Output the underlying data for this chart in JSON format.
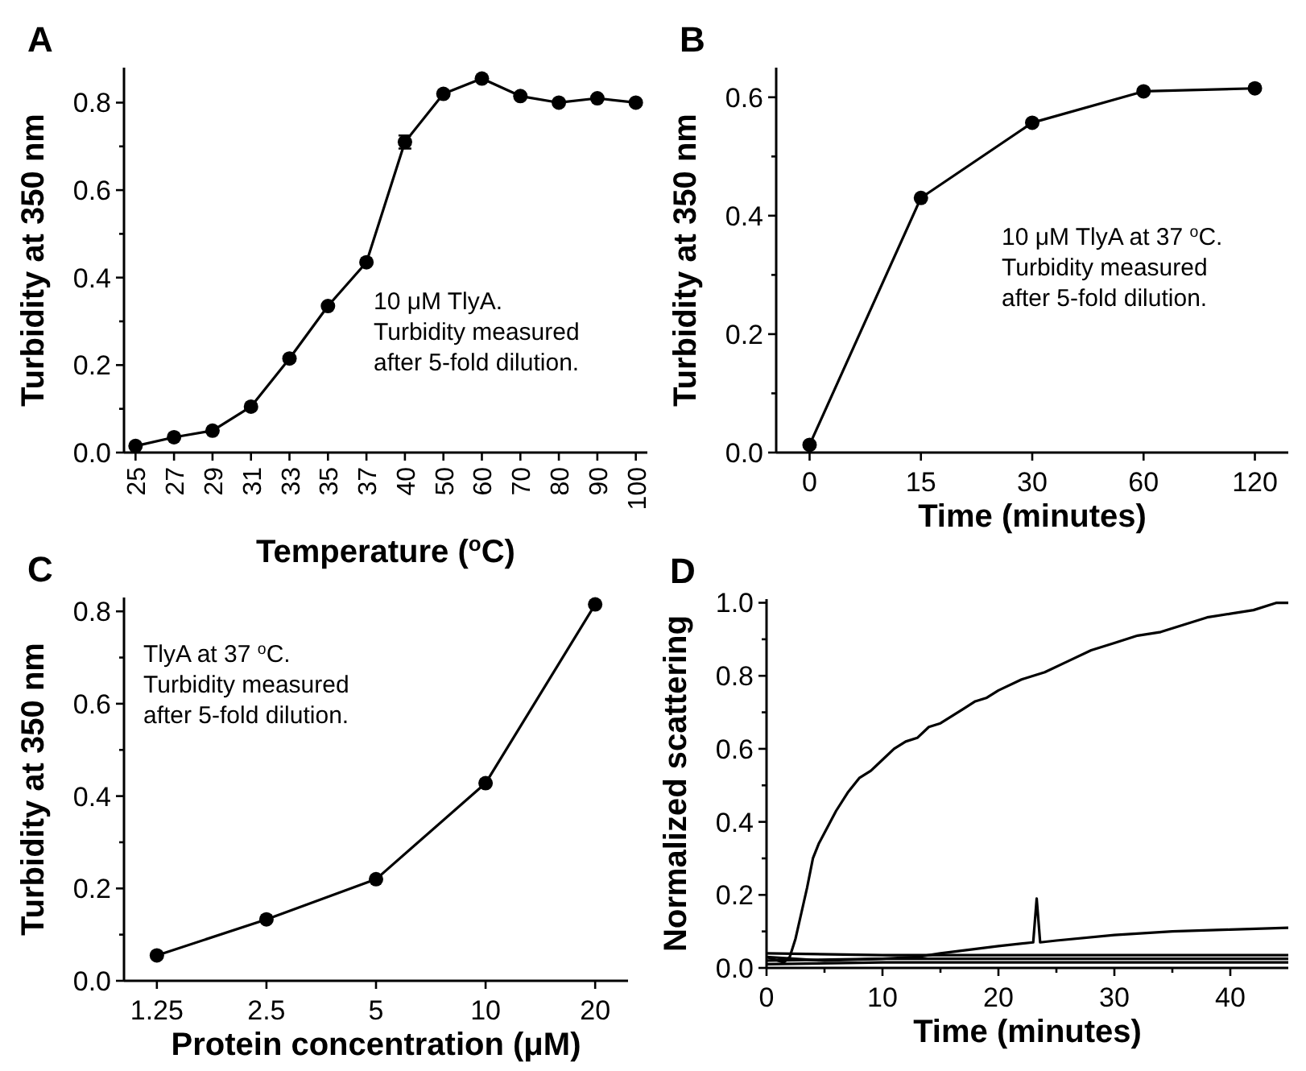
{
  "chart_data": [
    {
      "type": "line",
      "title": "A",
      "xlabel": "Temperature ($^{o}$C)",
      "ylabel": "Turbidity at 350 nm",
      "categories": [
        "25",
        "27",
        "29",
        "31",
        "33",
        "35",
        "37",
        "40",
        "50",
        "60",
        "70",
        "80",
        "90",
        "100"
      ],
      "series": [
        {
          "color": "#000000",
          "values": [
            0.015,
            0.035,
            0.05,
            0.105,
            0.215,
            0.335,
            0.435,
            0.71,
            0.82,
            0.855,
            0.815,
            0.8,
            0.81,
            0.8
          ],
          "errors": [
            null,
            null,
            null,
            null,
            null,
            null,
            null,
            0.015,
            null,
            null,
            null,
            null,
            null,
            null
          ]
        }
      ],
      "ylim": [
        0,
        0.88
      ],
      "yticks": [
        {
          "value": 0,
          "label": "0.0"
        },
        {
          "value": 0.1,
          "label": null
        },
        0.2,
        {
          "value": 0.3,
          "label": null
        },
        0.4,
        {
          "value": 0.5,
          "label": null
        },
        0.6,
        {
          "value": 0.7,
          "label": null
        },
        0.8
      ],
      "marker": "circle",
      "annotations": [
        "10 μM TlyA.\nTurbidity measured\nafter 5-fold dilution."
      ]
    },
    {
      "type": "line",
      "title": "B",
      "xlabel": "Time (minutes)",
      "ylabel": "Turbidity at 350 nm",
      "categories": [
        "0",
        "15",
        "30",
        "60",
        "120"
      ],
      "series": [
        {
          "color": "#000000",
          "values": [
            0.013,
            0.43,
            0.557,
            0.61,
            0.615
          ]
        }
      ],
      "ylim": [
        0,
        0.65
      ],
      "yticks": [
        {
          "value": 0,
          "label": "0.0"
        },
        {
          "value": 0.1,
          "label": null
        },
        0.2,
        {
          "value": 0.3,
          "label": null
        },
        0.4,
        {
          "value": 0.5,
          "label": null
        },
        0.6
      ],
      "marker": "circle",
      "annotations": [
        "10 μM TlyA at 37 $^{o}$C.\nTurbidity measured\nafter 5-fold dilution."
      ]
    },
    {
      "type": "line",
      "title": "C",
      "xlabel": "Protein concentration (μM)",
      "ylabel": "Turbidity at 350 nm",
      "categories": [
        "1.25",
        "2.5",
        "5",
        "10",
        "20"
      ],
      "series": [
        {
          "color": "#000000",
          "values": [
            0.055,
            0.133,
            0.22,
            0.428,
            0.815
          ]
        }
      ],
      "ylim": [
        0,
        0.83
      ],
      "yticks": [
        {
          "value": 0,
          "label": "0.0"
        },
        {
          "value": 0.1,
          "label": null
        },
        0.2,
        {
          "value": 0.3,
          "label": null
        },
        0.4,
        {
          "value": 0.5,
          "label": null
        },
        0.6,
        {
          "value": 0.7,
          "label": null
        },
        0.8
      ],
      "marker": "circle",
      "annotations": [
        "TlyA at 37 $^{o}$C.\nTurbidity measured\nafter 5-fold dilution."
      ]
    },
    {
      "type": "line",
      "title": "D",
      "xlabel": "Time (minutes)",
      "ylabel": "Normalized scattering",
      "xlim": [
        0,
        45
      ],
      "xticks": [
        0,
        {
          "value": 5,
          "label": null
        },
        10,
        {
          "value": 15,
          "label": null
        },
        20,
        {
          "value": 25,
          "label": null
        },
        30,
        {
          "value": 35,
          "label": null
        },
        40
      ],
      "ylim": [
        0,
        1.01
      ],
      "yticks": [
        {
          "value": 0,
          "label": "0.0"
        },
        {
          "value": 0.1,
          "label": null
        },
        0.2,
        {
          "value": 0.3,
          "label": null
        },
        0.4,
        {
          "value": 0.5,
          "label": null
        },
        0.6,
        {
          "value": 0.7,
          "label": null
        },
        0.8,
        {
          "value": 0.9,
          "label": null
        },
        {
          "value": 1,
          "label": "1.0"
        }
      ],
      "marker": "none",
      "series": [
        {
          "color": "#000000",
          "x": [
            0,
            1,
            1.5,
            2,
            2.5,
            3,
            3.5,
            4,
            4.5,
            5,
            6,
            7,
            7.5,
            8,
            9,
            10,
            11,
            12,
            13,
            14,
            15,
            16,
            17,
            18,
            19,
            20,
            22,
            24,
            26,
            28,
            30,
            32,
            34,
            36,
            38,
            40,
            42,
            44,
            45
          ],
          "values": [
            0.03,
            0.02,
            0.015,
            0.03,
            0.08,
            0.15,
            0.22,
            0.3,
            0.34,
            0.37,
            0.43,
            0.48,
            0.5,
            0.52,
            0.54,
            0.57,
            0.6,
            0.62,
            0.63,
            0.66,
            0.67,
            0.69,
            0.71,
            0.73,
            0.74,
            0.76,
            0.79,
            0.81,
            0.84,
            0.87,
            0.89,
            0.91,
            0.92,
            0.94,
            0.96,
            0.97,
            0.98,
            1.0,
            1.0
          ]
        },
        {
          "color": "#000000",
          "x": [
            0,
            5,
            10,
            13,
            15,
            20,
            23,
            23.3,
            23.6,
            25,
            30,
            35,
            40,
            45
          ],
          "values": [
            0.03,
            0.02,
            0.025,
            0.03,
            0.04,
            0.06,
            0.07,
            0.19,
            0.07,
            0.075,
            0.09,
            0.1,
            0.105,
            0.11
          ]
        },
        {
          "color": "#000000",
          "x": [
            0,
            10,
            20,
            30,
            45
          ],
          "values": [
            0.04,
            0.035,
            0.035,
            0.035,
            0.035
          ]
        },
        {
          "color": "#000000",
          "x": [
            0,
            10,
            20,
            30,
            45
          ],
          "values": [
            0.02,
            0.025,
            0.025,
            0.025,
            0.025
          ]
        },
        {
          "color": "#000000",
          "x": [
            0,
            10,
            20,
            30,
            45
          ],
          "values": [
            0.01,
            0.015,
            0.015,
            0.015,
            0.015
          ]
        }
      ]
    }
  ]
}
